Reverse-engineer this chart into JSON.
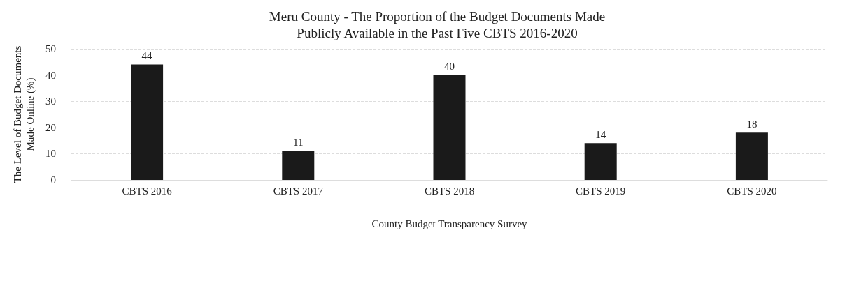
{
  "chart_data": {
    "type": "bar",
    "title": "Meru County - The Proportion of the Budget Documents Made\nPublicly Available in the Past Five CBTS 2016-2020",
    "xlabel": "County Budget Transparency Survey",
    "ylabel": "The Level of Budget Documents\nMade Online (%)",
    "categories": [
      "CBTS 2016",
      "CBTS 2017",
      "CBTS 2018",
      "CBTS 2019",
      "CBTS 2020"
    ],
    "values": [
      44,
      11,
      40,
      14,
      18
    ],
    "color": "#1a1a1a",
    "ylim": [
      0,
      50
    ],
    "yticks": [
      0,
      10,
      20,
      30,
      40,
      50
    ],
    "grid": "y",
    "data_labels": true
  }
}
